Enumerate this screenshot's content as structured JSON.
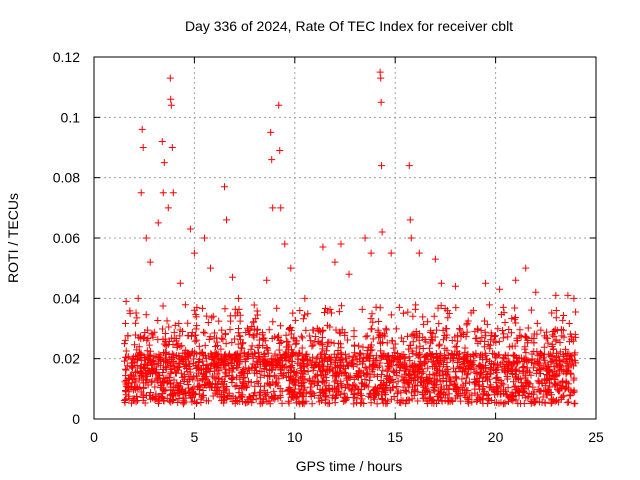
{
  "chart_data": {
    "type": "scatter",
    "title": "Day 336 of 2024, Rate Of TEC Index for receiver cblt",
    "xlabel": "GPS time / hours",
    "ylabel": "ROTI / TECUs",
    "xlim": [
      0,
      25
    ],
    "ylim": [
      0,
      0.12
    ],
    "xticks": [
      "0",
      "5",
      "10",
      "15",
      "20",
      "25"
    ],
    "yticks": [
      "0",
      "0.02",
      "0.04",
      "0.06",
      "0.08",
      "0.1",
      "0.12"
    ],
    "grid": true,
    "marker": "plus",
    "color": "#ff0000",
    "points": [
      [
        1.6,
        0.039
      ],
      [
        1.8,
        0.035
      ],
      [
        2.2,
        0.04
      ],
      [
        2.35,
        0.075
      ],
      [
        2.4,
        0.096
      ],
      [
        2.45,
        0.09
      ],
      [
        2.6,
        0.06
      ],
      [
        2.8,
        0.052
      ],
      [
        3.2,
        0.065
      ],
      [
        3.4,
        0.092
      ],
      [
        3.45,
        0.075
      ],
      [
        3.5,
        0.085
      ],
      [
        3.7,
        0.07
      ],
      [
        3.8,
        0.113
      ],
      [
        3.82,
        0.106
      ],
      [
        3.85,
        0.104
      ],
      [
        3.9,
        0.09
      ],
      [
        3.95,
        0.075
      ],
      [
        4.3,
        0.045
      ],
      [
        4.8,
        0.063
      ],
      [
        5.0,
        0.055
      ],
      [
        5.5,
        0.06
      ],
      [
        5.8,
        0.05
      ],
      [
        6.5,
        0.077
      ],
      [
        6.6,
        0.066
      ],
      [
        6.9,
        0.047
      ],
      [
        7.2,
        0.04
      ],
      [
        8.6,
        0.046
      ],
      [
        8.8,
        0.095
      ],
      [
        8.85,
        0.086
      ],
      [
        8.9,
        0.07
      ],
      [
        9.2,
        0.104
      ],
      [
        9.25,
        0.089
      ],
      [
        9.3,
        0.07
      ],
      [
        9.5,
        0.058
      ],
      [
        9.8,
        0.05
      ],
      [
        10.5,
        0.04
      ],
      [
        11.4,
        0.057
      ],
      [
        12.0,
        0.052
      ],
      [
        12.3,
        0.058
      ],
      [
        12.7,
        0.048
      ],
      [
        13.5,
        0.06
      ],
      [
        13.8,
        0.055
      ],
      [
        14.25,
        0.115
      ],
      [
        14.28,
        0.113
      ],
      [
        14.3,
        0.105
      ],
      [
        14.32,
        0.084
      ],
      [
        14.35,
        0.062
      ],
      [
        14.8,
        0.055
      ],
      [
        15.7,
        0.084
      ],
      [
        15.75,
        0.066
      ],
      [
        15.8,
        0.06
      ],
      [
        16.2,
        0.055
      ],
      [
        17.0,
        0.053
      ],
      [
        17.3,
        0.045
      ],
      [
        18.0,
        0.044
      ],
      [
        19.5,
        0.045
      ],
      [
        20.2,
        0.043
      ],
      [
        21.0,
        0.046
      ],
      [
        21.5,
        0.05
      ],
      [
        22.0,
        0.042
      ],
      [
        23.0,
        0.041
      ],
      [
        23.6,
        0.041
      ],
      [
        23.9,
        0.04
      ]
    ]
  }
}
